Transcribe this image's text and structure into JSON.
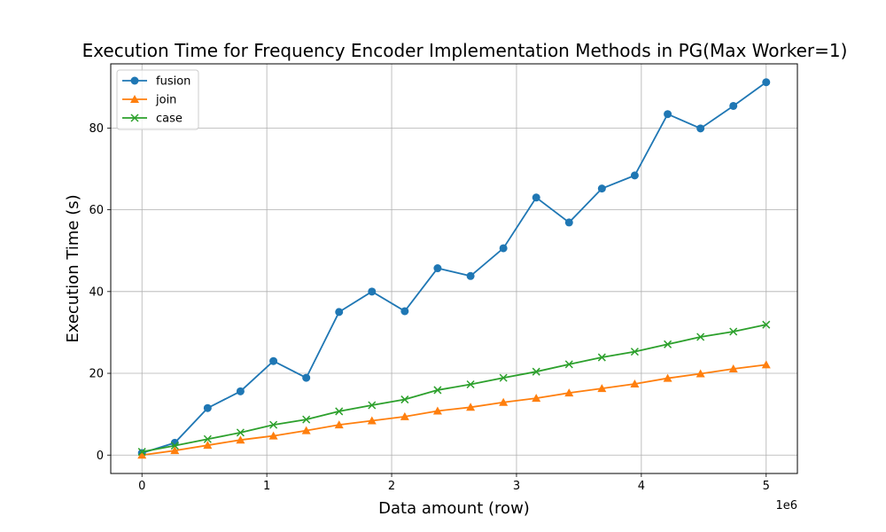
{
  "chart_data": {
    "type": "line",
    "title": "Execution Time for Frequency Encoder Implementation Methods in PG(Max Worker=1)",
    "xlabel": "Data amount (row)",
    "ylabel": "Execution Time (s)",
    "x_offset_label": "1e6",
    "xlim": [
      -0.25,
      5.25
    ],
    "ylim": [
      -4.5,
      95.7
    ],
    "xticks": [
      0,
      1,
      2,
      3,
      4,
      5
    ],
    "yticks": [
      0,
      20,
      40,
      60,
      80
    ],
    "grid": true,
    "legend_position": "upper-left",
    "x": [
      0.0,
      0.263,
      0.526,
      0.789,
      1.053,
      1.316,
      1.579,
      1.842,
      2.105,
      2.368,
      2.632,
      2.895,
      3.158,
      3.421,
      3.684,
      3.947,
      4.211,
      4.474,
      4.737,
      5.0
    ],
    "series": [
      {
        "name": "fusion",
        "color": "#1f77b4",
        "marker": "circle",
        "values": [
          0.5,
          3.0,
          11.5,
          15.6,
          23.0,
          18.9,
          35.0,
          40.0,
          35.2,
          45.7,
          43.8,
          50.6,
          63.0,
          56.9,
          65.2,
          68.4,
          83.4,
          79.9,
          85.4,
          91.2
        ]
      },
      {
        "name": "join",
        "color": "#ff7f0e",
        "marker": "triangle",
        "values": [
          0.0,
          1.1,
          2.4,
          3.7,
          4.7,
          6.0,
          7.4,
          8.4,
          9.4,
          10.8,
          11.7,
          12.9,
          13.9,
          15.2,
          16.3,
          17.4,
          18.8,
          19.9,
          21.1,
          22.1
        ]
      },
      {
        "name": "case",
        "color": "#2ca02c",
        "marker": "x",
        "values": [
          0.8,
          2.3,
          3.9,
          5.5,
          7.4,
          8.7,
          10.7,
          12.2,
          13.6,
          15.9,
          17.3,
          18.9,
          20.4,
          22.2,
          23.9,
          25.3,
          27.1,
          28.9,
          30.2,
          31.9
        ]
      }
    ]
  }
}
